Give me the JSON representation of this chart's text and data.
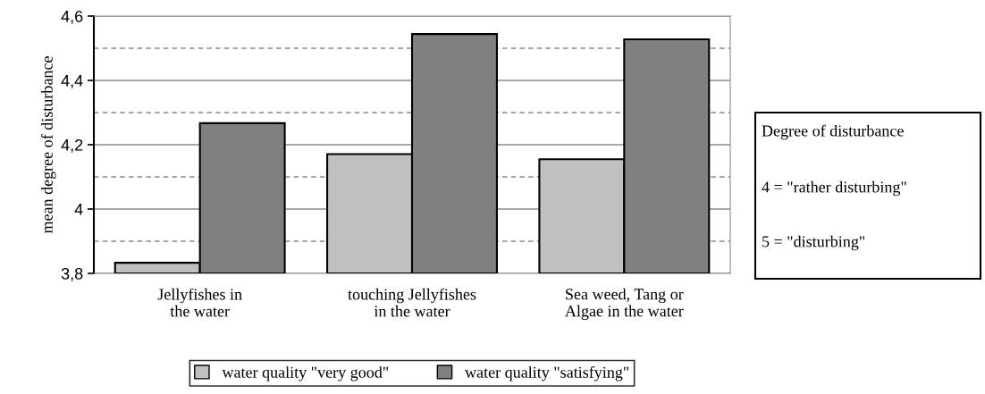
{
  "chart_data": {
    "type": "bar",
    "ylabel": "mean degree of disturbance",
    "categories": [
      "Jellyfishes in\nthe water",
      "touching Jellyfishes\nin the water",
      "Sea weed, Tang or\nAlgae in the water"
    ],
    "series": [
      {
        "name": "water quality \"very good\"",
        "color": "#c0c0c0",
        "values": [
          3.833,
          4.171,
          4.155
        ]
      },
      {
        "name": "water quality \"satisfying\"",
        "color": "#808080",
        "values": [
          4.267,
          4.544,
          4.528
        ]
      }
    ],
    "ylim": [
      3.8,
      4.6
    ],
    "yticks": [
      {
        "value": 3.8,
        "label": "3,8"
      },
      4,
      {
        "value": 4.2,
        "label": "4,2"
      },
      {
        "value": 4.4,
        "label": "4,4"
      },
      {
        "value": 4.6,
        "label": "4,6"
      }
    ],
    "grid": "y",
    "legend": "bottom",
    "annotations": [
      "Degree of disturbance",
      "4 = \"rather disturbing\"",
      "5 = \"disturbing\""
    ]
  }
}
